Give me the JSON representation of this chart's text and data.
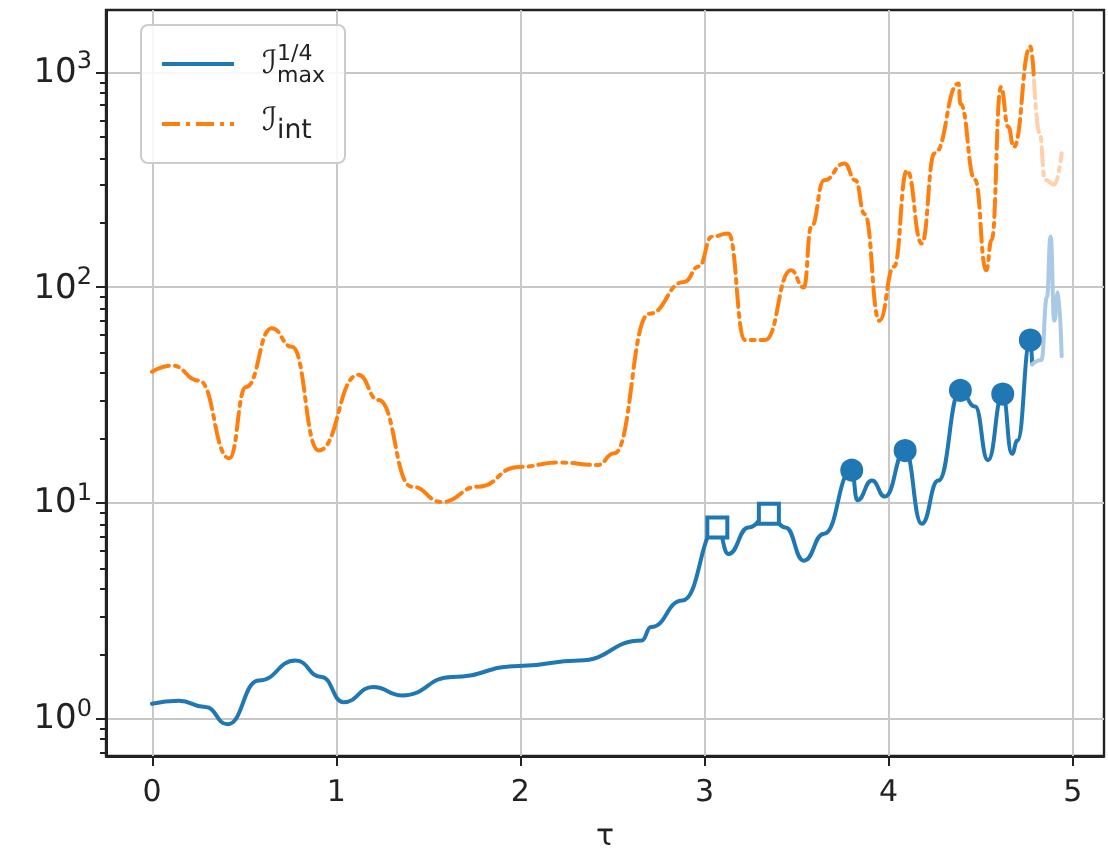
{
  "chart_data": {
    "type": "line",
    "xlabel": "τ",
    "xlim": [
      -0.25,
      5.17
    ],
    "xticks": [
      0,
      1,
      2,
      3,
      4,
      5
    ],
    "log": true,
    "ylim": [
      0.67,
      1936
    ],
    "yticks": [
      {
        "value": 1,
        "label": "10$^{0}$"
      },
      {
        "value": 10,
        "label": "10$^{1}$"
      },
      {
        "value": 100,
        "label": "10$^{2}$"
      },
      {
        "value": 1000,
        "label": "10$^{3}$"
      }
    ],
    "grid": true,
    "legend": "top left",
    "series": [
      {
        "name": "ℐ$^{1/4}$$_{max}$",
        "color": "#1f77b4",
        "line_style": "solid",
        "x": [
          0,
          0.146,
          0.29,
          0.41,
          0.58,
          0.78,
          0.92,
          1.04,
          1.2,
          1.36,
          1.63,
          1.99,
          2.32,
          2.66,
          2.71,
          2.88,
          3.07,
          3.13,
          3.24,
          3.35,
          3.44,
          3.54,
          3.65,
          3.8,
          3.83,
          3.91,
          3.98,
          4.09,
          4.18,
          4.27,
          4.39,
          4.47,
          4.54,
          4.62,
          4.67,
          4.7,
          4.77,
          4.78
        ],
        "values": [
          1.17,
          1.21,
          1.13,
          0.94,
          1.5,
          1.86,
          1.56,
          1.19,
          1.4,
          1.28,
          1.56,
          1.75,
          1.86,
          2.3,
          2.66,
          3.53,
          7.7,
          5.8,
          7.7,
          8.9,
          7.7,
          5.4,
          7.2,
          14.2,
          10.3,
          12.7,
          10.7,
          17.5,
          8,
          12.7,
          33.3,
          28,
          15.8,
          32,
          16.9,
          19.5,
          57,
          44
        ]
      },
      {
        "name": "ℐ$_{int}$",
        "color": "#ff7f0e",
        "line_style": "dashed",
        "x": [
          0,
          0.11,
          0.255,
          0.42,
          0.51,
          0.65,
          0.76,
          0.905,
          1.12,
          1.23,
          1.41,
          1.575,
          1.77,
          1.99,
          2.21,
          2.42,
          2.51,
          2.7,
          2.89,
          2.97,
          3.04,
          3.13,
          3.22,
          3.33,
          3.47,
          3.54,
          3.58,
          3.65,
          3.76,
          3.82,
          3.87,
          3.95,
          4.03,
          4.1,
          4.18,
          4.25,
          4.38,
          4.39,
          4.47,
          4.53,
          4.56,
          4.61,
          4.65,
          4.68,
          4.77,
          4.79
        ],
        "values": [
          40.6,
          43.4,
          37,
          16.1,
          34.5,
          64.7,
          53,
          17.5,
          39.3,
          30,
          11.9,
          10.1,
          11.9,
          14.7,
          15.4,
          15,
          17,
          75.5,
          106,
          125,
          172,
          178,
          57,
          57,
          120,
          100,
          191,
          314,
          376,
          314,
          219,
          70,
          125,
          349,
          160,
          419,
          883,
          712,
          315,
          120,
          166,
          850,
          556,
          448,
          1310,
          915
        ]
      },
      {
        "color": "#a9c9e4",
        "line_style": "solid",
        "x": [
          4.78,
          4.83,
          4.86,
          4.88,
          4.9,
          4.92,
          4.94
        ],
        "values": [
          44,
          46,
          90,
          172,
          70,
          95,
          48
        ]
      },
      {
        "color": "#ffd0aa",
        "line_style": "dashed",
        "x": [
          4.79,
          4.82,
          4.85,
          4.9,
          4.94
        ],
        "values": [
          915,
          520,
          315,
          300,
          419
        ]
      },
      {
        "type": "scatter",
        "marker": "square",
        "color": "#1f77b4",
        "x": [
          3.07,
          3.35
        ],
        "values": [
          7.7,
          8.9
        ]
      },
      {
        "type": "scatter",
        "marker": "circle",
        "color": "#1f77b4",
        "x": [
          3.8,
          4.09,
          4.39,
          4.62,
          4.77
        ],
        "values": [
          14.2,
          17.5,
          33.3,
          32,
          57
        ]
      }
    ]
  }
}
